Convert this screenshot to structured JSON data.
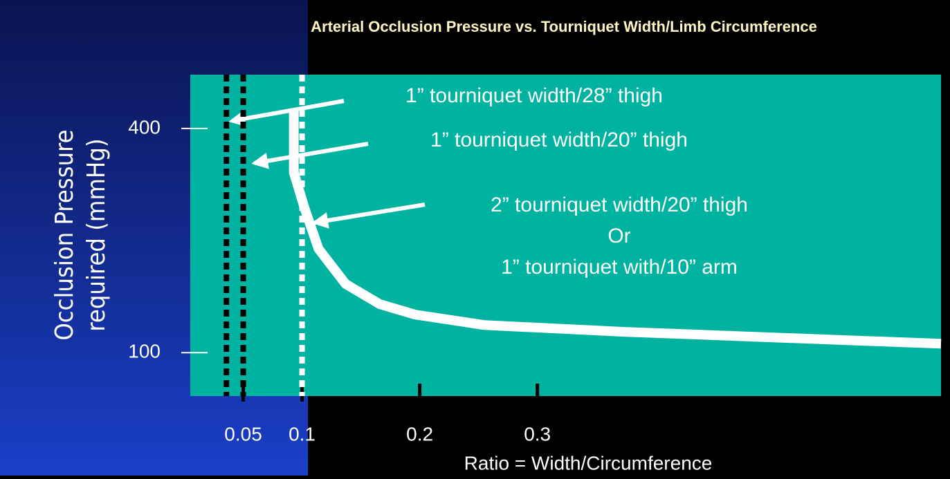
{
  "chart_data": {
    "type": "line",
    "title": "Arterial Occlusion Pressure  vs. Tourniquet Width/Limb Circumference",
    "ylabel": [
      "Occlusion Pressure",
      "required (mmHg)"
    ],
    "xlabel": "Ratio = Width/Circumference",
    "xlim": [
      0.005,
      0.643
    ],
    "ylim": [
      42,
      472
    ],
    "xticks": [
      0.05,
      0.1,
      0.2,
      0.3
    ],
    "yticks": [
      100,
      400
    ],
    "series": [
      {
        "color": "#ffffff",
        "x": [
          0.093,
          0.093,
          0.102,
          0.114,
          0.137,
          0.166,
          0.196,
          0.255,
          0.372,
          0.643
        ],
        "values": [
          424,
          341,
          294,
          239,
          192,
          165,
          151,
          137,
          128,
          112
        ]
      }
    ],
    "vlines": [
      {
        "x": 0.0357,
        "color": "#000000"
      },
      {
        "x": 0.05,
        "color": "#000000"
      },
      {
        "x": 0.1,
        "color": "#ffffff"
      }
    ],
    "annotations": [
      "1” tourniquet width/28” thigh",
      "1” tourniquet width/20” thigh",
      "2” tourniquet width/20” thigh",
      "Or",
      "1” tourniquet with/10” arm"
    ]
  }
}
